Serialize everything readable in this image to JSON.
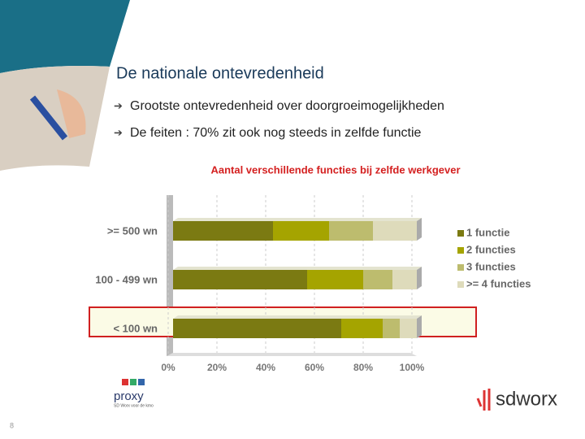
{
  "slide": {
    "title": "De nationale ontevredenheid",
    "bullets": [
      "Grootste ontevredenheid over doorgroeimogelijkheden",
      "De feiten : 70% zit ook nog steeds in zelfde functie"
    ],
    "page_number": "8",
    "logo_left": "proxy",
    "logo_left_sub": "SD Worx voor de kmo",
    "logo_right": "sdworx"
  },
  "chart_data": {
    "type": "stacked-hbar",
    "title": "Aantal verschillende functies bij zelfde werkgever",
    "categories": [
      ">= 500 wn",
      "100 - 499 wn",
      "< 100 wn"
    ],
    "series": [
      {
        "name": "1 functie",
        "color": "#7b7a12",
        "values": [
          41,
          55,
          69
        ]
      },
      {
        "name": "2 functies",
        "color": "#a5a400",
        "values": [
          23,
          23,
          17
        ]
      },
      {
        "name": "3 functies",
        "color": "#bdbc6e",
        "values": [
          18,
          12,
          7
        ]
      },
      {
        "name": ">= 4 functies",
        "color": "#dedbbb",
        "values": [
          18,
          10,
          7
        ]
      }
    ],
    "xlim": [
      0,
      100
    ],
    "xticks": [
      {
        "value": 0,
        "label": "0%"
      },
      {
        "value": 20,
        "label": "20%"
      },
      {
        "value": 40,
        "label": "40%"
      },
      {
        "value": 60,
        "label": "60%"
      },
      {
        "value": 80,
        "label": "80%"
      },
      {
        "value": 100,
        "label": "100%"
      }
    ],
    "grid": true,
    "legend": "right",
    "highlight": "< 100 wn"
  }
}
